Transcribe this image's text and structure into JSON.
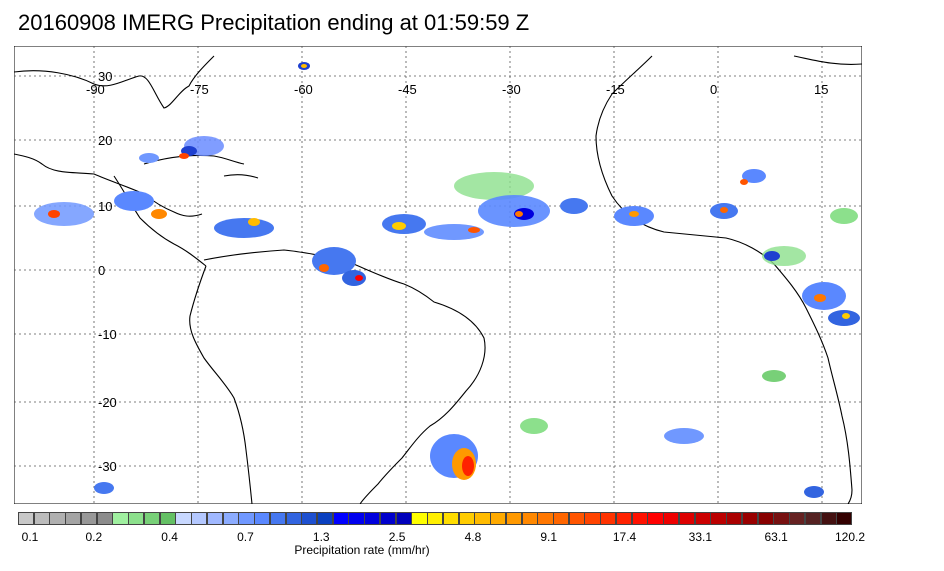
{
  "title": "20160908 IMERG Precipitation ending at 01:59:59 Z",
  "map": {
    "lon_ticks": [
      "-90",
      "-75",
      "-60",
      "-45",
      "-30",
      "-15",
      "0",
      "15"
    ],
    "lat_ticks": [
      "30",
      "20",
      "10",
      "0",
      "-10",
      "-20",
      "-30"
    ],
    "grid": true
  },
  "colorbar": {
    "label": "Precipitation rate (mm/hr)",
    "ticks": [
      "0.1",
      "0.2",
      "0.4",
      "0.7",
      "1.3",
      "2.5",
      "4.8",
      "9.1",
      "17.4",
      "33.1",
      "63.1",
      "120.2"
    ],
    "colors": [
      "#c8c8c8",
      "#bcbcbc",
      "#b0b0b0",
      "#a4a4a4",
      "#989898",
      "#8c8c8c",
      "#a0f0a0",
      "#8ce08c",
      "#78d078",
      "#64c064",
      "#c8d8ff",
      "#b4c8ff",
      "#a0b8ff",
      "#8cacff",
      "#7098ff",
      "#5a88ff",
      "#4678f0",
      "#3264e0",
      "#1e50d0",
      "#0a40c0",
      "#0000ff",
      "#0000ee",
      "#0000dd",
      "#0000cc",
      "#0000bb",
      "#ffff00",
      "#ffef00",
      "#ffdd00",
      "#ffcc00",
      "#ffbb00",
      "#ffaa00",
      "#ff9900",
      "#ff8800",
      "#ff7700",
      "#ff6600",
      "#ff5500",
      "#ff4400",
      "#ff3300",
      "#ff2200",
      "#ff1100",
      "#ff0000",
      "#ee0000",
      "#dd0000",
      "#cc0000",
      "#bb0000",
      "#aa0000",
      "#990000",
      "#880000",
      "#771111",
      "#662222",
      "#552222",
      "#441111",
      "#330000"
    ]
  }
}
